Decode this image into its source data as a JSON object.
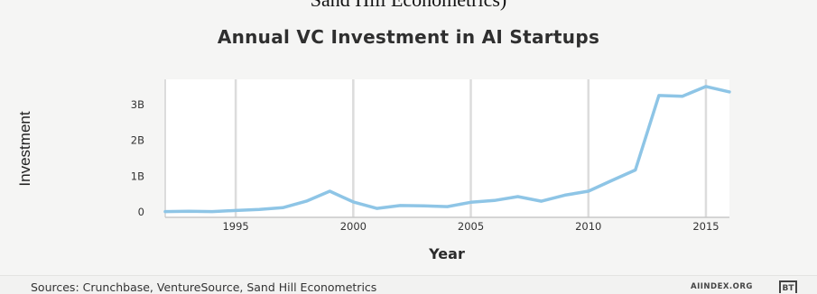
{
  "caption": {
    "fragment": "Sand Hill Econometrics)"
  },
  "chart_data": {
    "type": "line",
    "title": "Annual VC Investment in AI Startups",
    "xlabel": "Year",
    "ylabel": "Investment",
    "xlim": [
      1992,
      2016
    ],
    "ylim": [
      -0.15,
      3.7
    ],
    "x_ticks": [
      {
        "value": 1995,
        "label": "1995"
      },
      {
        "value": 2000,
        "label": "2000"
      },
      {
        "value": 2005,
        "label": "2005"
      },
      {
        "value": 2010,
        "label": "2010"
      },
      {
        "value": 2015,
        "label": "2015"
      }
    ],
    "y_ticks": [
      {
        "value": 0,
        "label": "0"
      },
      {
        "value": 1,
        "label": "1B"
      },
      {
        "value": 2,
        "label": "2B"
      },
      {
        "value": 3,
        "label": "3B"
      }
    ],
    "grid": "vertical",
    "line_color": "#8ec5e6",
    "series": [
      {
        "x": [
          1992,
          1993,
          1994,
          1995,
          1996,
          1997,
          1998,
          1999,
          2000,
          2001,
          2002,
          2003,
          2004,
          2005,
          2006,
          2007,
          2008,
          2009,
          2010,
          2011,
          2012,
          2013,
          2014,
          2015,
          2016
        ],
        "values": [
          0.01,
          0.02,
          0.01,
          0.04,
          0.07,
          0.12,
          0.3,
          0.58,
          0.28,
          0.1,
          0.18,
          0.17,
          0.15,
          0.27,
          0.32,
          0.43,
          0.3,
          0.47,
          0.58,
          0.88,
          1.17,
          3.25,
          3.23,
          3.5,
          3.35
        ]
      }
    ]
  },
  "footer": {
    "source": "Sources: Crunchbase, VentureSource, Sand Hill Econometrics",
    "brand": "AIINDEX.ORG",
    "logo": "BT"
  }
}
